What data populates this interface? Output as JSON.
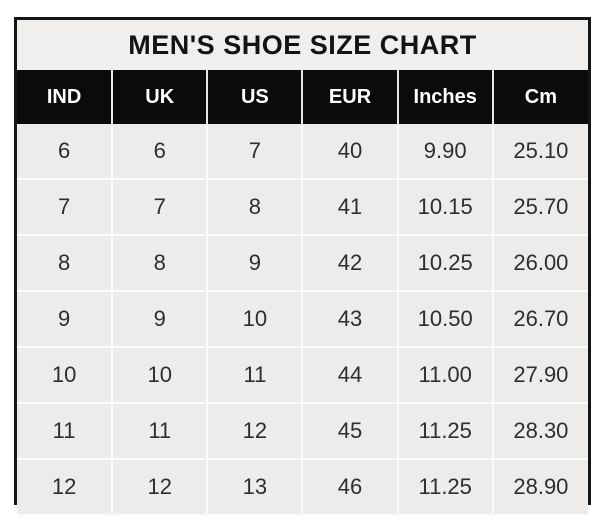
{
  "chart_data": {
    "type": "table",
    "title": "MEN'S SHOE SIZE CHART",
    "columns": [
      "IND",
      "UK",
      "US",
      "EUR",
      "Inches",
      "Cm"
    ],
    "rows": [
      [
        "6",
        "6",
        "7",
        "40",
        "9.90",
        "25.10"
      ],
      [
        "7",
        "7",
        "8",
        "41",
        "10.15",
        "25.70"
      ],
      [
        "8",
        "8",
        "9",
        "42",
        "10.25",
        "26.00"
      ],
      [
        "9",
        "9",
        "10",
        "43",
        "10.50",
        "26.70"
      ],
      [
        "10",
        "10",
        "11",
        "44",
        "11.00",
        "27.90"
      ],
      [
        "11",
        "11",
        "12",
        "45",
        "11.25",
        "28.30"
      ],
      [
        "12",
        "12",
        "13",
        "46",
        "11.25",
        "28.90"
      ]
    ],
    "layout": {
      "grid": "on",
      "header_style": "black-band-white-text",
      "title_position": "top-center"
    }
  },
  "colors": {
    "page_bg": "#ffffff",
    "title_bg": "#f0efee",
    "title_text": "#131313",
    "header_bg": "#0b0b0b",
    "header_text": "#ffffff",
    "cell_bg": "#edecea",
    "gridline": "#fbfbfa",
    "outer_border": "#161616",
    "body_text": "#2e2e2e"
  }
}
